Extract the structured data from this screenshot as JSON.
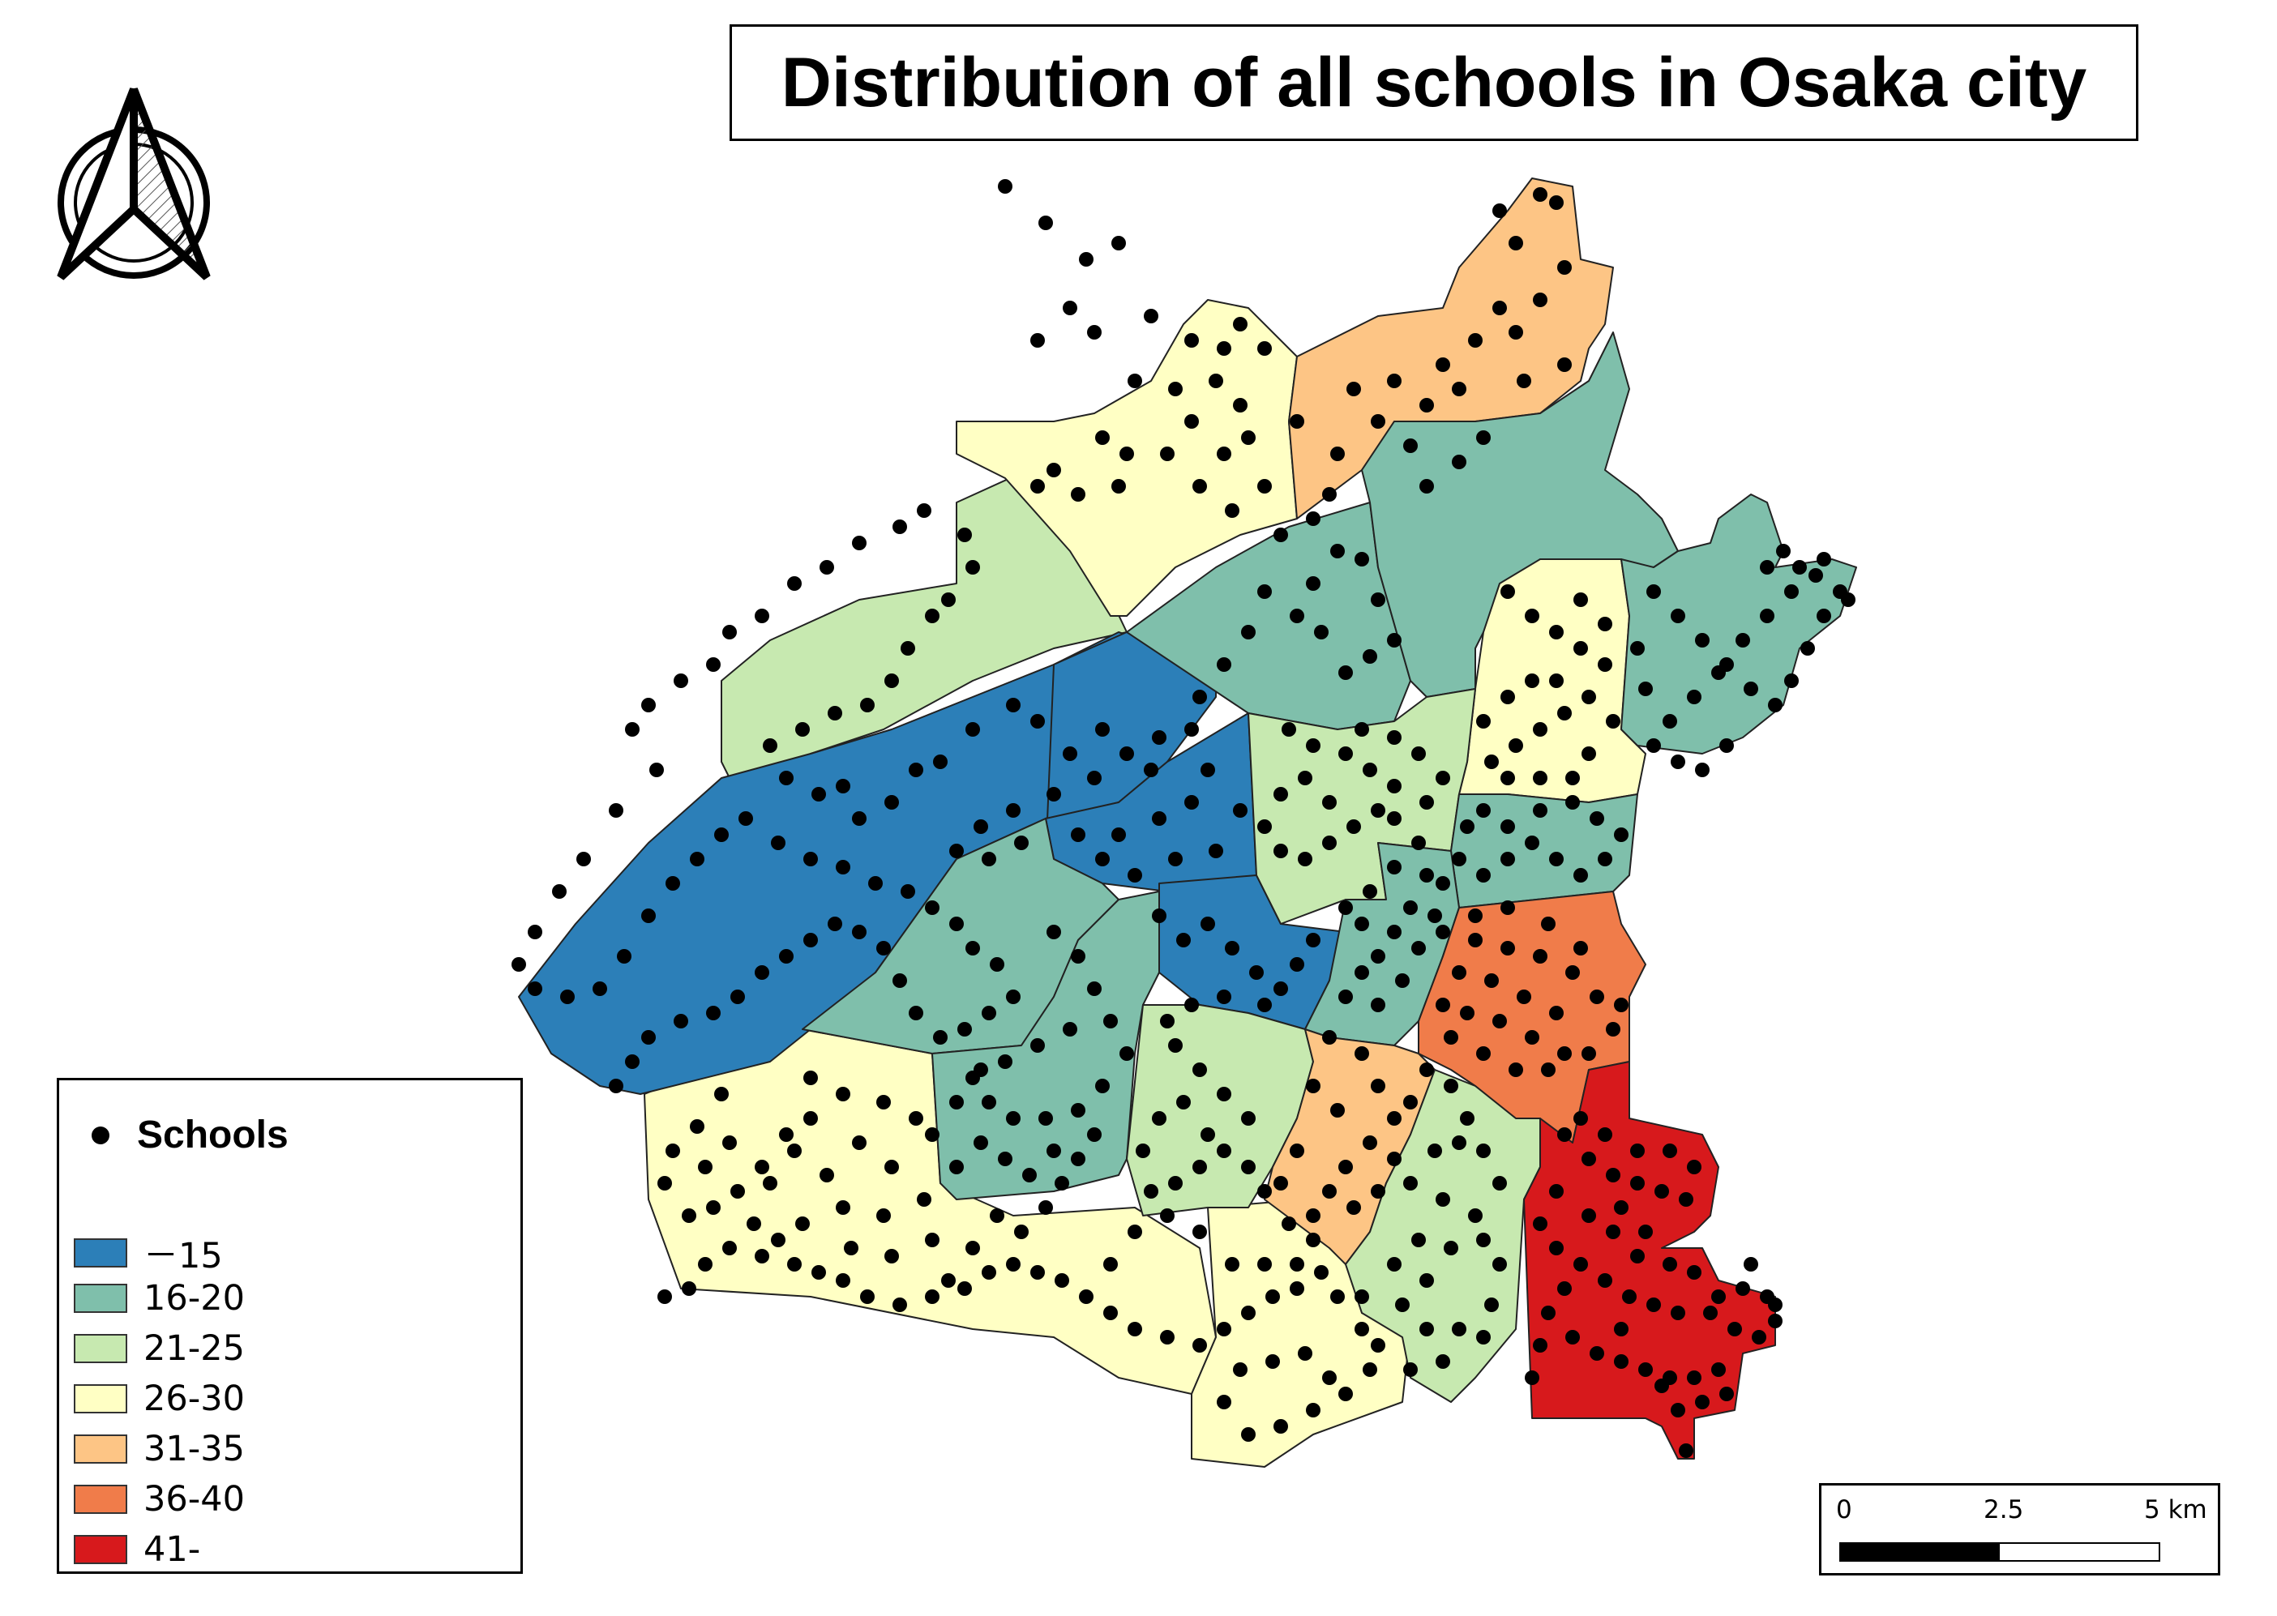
{
  "title": "Distribution of all schools in Osaka city",
  "legend": {
    "point_label": "Schools",
    "classes": [
      {
        "label": "－15",
        "color": "#2c7fb8"
      },
      {
        "label": "16-20",
        "color": "#7fbfab"
      },
      {
        "label": "21-25",
        "color": "#c7e9b0"
      },
      {
        "label": "26-30",
        "color": "#ffffc4"
      },
      {
        "label": "31-35",
        "color": "#fdc585"
      },
      {
        "label": "36-40",
        "color": "#f07c4a"
      },
      {
        "label": "41-",
        "color": "#d7191c"
      }
    ]
  },
  "scale_bar": {
    "ticks": [
      "0",
      "2.5",
      "5 km"
    ]
  },
  "icons": {
    "north_arrow": "north-arrow-icon",
    "school_marker": "black-dot"
  },
  "colors": {
    "border": "#222222",
    "school": "#000000"
  }
}
